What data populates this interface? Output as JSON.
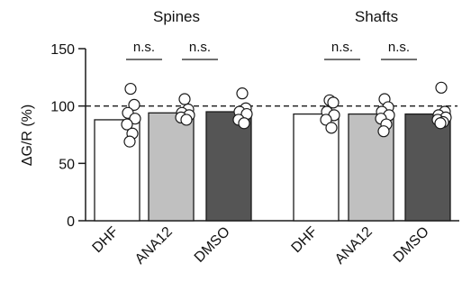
{
  "chart_data": {
    "type": "bar",
    "ylabel": "ΔG/R (%)",
    "ylim": [
      0,
      150
    ],
    "yticks": [
      "0",
      "50",
      "100",
      "150"
    ],
    "reference_line": 100,
    "groups": [
      {
        "title": "Spines",
        "categories": [
          "DHF",
          "ANA12",
          "DMSO"
        ],
        "values": [
          88,
          94,
          95
        ],
        "points": [
          [
            115,
            101,
            94,
            89,
            84,
            76,
            69
          ],
          [
            106,
            97,
            94,
            92,
            90,
            88
          ],
          [
            111,
            98,
            95,
            93,
            88,
            85
          ]
        ],
        "comparisons": [
          "n.s.",
          "n.s."
        ]
      },
      {
        "title": "Shafts",
        "categories": [
          "DHF",
          "ANA12",
          "DMSO"
        ],
        "values": [
          93,
          93,
          93
        ],
        "points": [
          [
            105,
            103,
            95,
            92,
            88,
            81
          ],
          [
            106,
            99,
            95,
            92,
            89,
            84,
            78
          ],
          [
            116,
            95,
            92,
            90,
            88,
            86,
            85
          ]
        ],
        "comparisons": [
          "n.s.",
          "n.s."
        ]
      }
    ]
  },
  "colors": {
    "bar_fills": [
      "#ffffff",
      "#c0c0c0",
      "#555555"
    ],
    "stroke": "#1a1a1a",
    "point_fill": "#ffffff"
  }
}
